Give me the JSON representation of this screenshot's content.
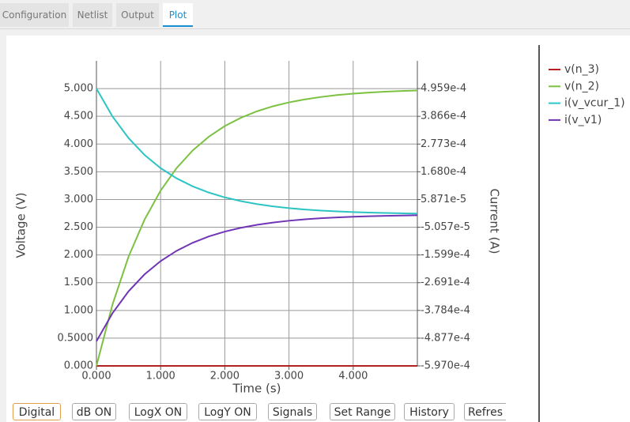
{
  "tabs": [
    "Configuration",
    "Netlist",
    "Output",
    "Plot"
  ],
  "buttons": [
    "Digital",
    "dB ON",
    "LogX ON",
    "LogY ON",
    "Signals",
    "Set Range",
    "History",
    "Refres"
  ],
  "chart_data": {
    "type": "line",
    "x_label": "Time (s)",
    "y_label": "Voltage (V)",
    "y2_label": "Current (A)",
    "x": [
      0,
      0.25,
      0.5,
      0.75,
      1,
      1.25,
      1.5,
      1.75,
      2,
      2.25,
      2.5,
      2.75,
      3,
      3.25,
      3.5,
      3.75,
      4,
      4.25,
      4.5,
      4.75,
      5
    ],
    "series": [
      {
        "name": "v(n_3)",
        "color": "#b22222",
        "values": [
          0,
          0,
          0,
          0,
          0,
          0,
          0,
          0,
          0,
          0,
          0,
          0,
          0,
          0,
          0,
          0,
          0,
          0,
          0,
          0,
          0
        ]
      },
      {
        "name": "v(n_2)",
        "color": "#7cc142",
        "values": [
          0,
          1.106,
          1.968,
          2.638,
          3.161,
          3.568,
          3.885,
          4.131,
          4.324,
          4.473,
          4.59,
          4.681,
          4.751,
          4.806,
          4.849,
          4.883,
          4.909,
          4.929,
          4.945,
          4.957,
          4.966
        ]
      },
      {
        "name": "i(v_vcur_1)",
        "color": "#2ec4c4",
        "axis": "y2",
        "values": [
          0.0004959,
          0.0003862,
          0.0003008,
          0.0002343,
          0.0001824,
          0.0001421,
          0.0001106,
          8.62e-05,
          6.71e-05,
          5.23e-05,
          4.07e-05,
          3.17e-05,
          2.47e-05,
          1.92e-05,
          1.5e-05,
          1.17e-05,
          9.1e-06,
          7.1e-06,
          5.5e-06,
          4.3e-06,
          3.3e-06
        ]
      },
      {
        "name": "i(v_v1)",
        "color": "#7035b5",
        "axis": "y2",
        "values": [
          -0.0005,
          -0.0003894,
          -0.0003033,
          -0.0002362,
          -0.000184,
          -0.0001433,
          -0.0001116,
          -8.69e-05,
          -6.77e-05,
          -5.27e-05,
          -4.11e-05,
          -3.2e-05,
          -2.49e-05,
          -1.94e-05,
          -1.51e-05,
          -1.18e-05,
          -9.2e-06,
          -7.2e-06,
          -5.6e-06,
          -4.4e-06,
          -3.4e-06
        ]
      }
    ],
    "xlim": [
      0,
      5
    ],
    "xticks": [
      {
        "value": 0,
        "label": "0.000"
      },
      {
        "value": 1,
        "label": "1.000"
      },
      {
        "value": 2,
        "label": "2.000"
      },
      {
        "value": 3,
        "label": "3.000"
      },
      {
        "value": 4,
        "label": "4.000"
      }
    ],
    "ylim": [
      0,
      5.5
    ],
    "yticks": [
      {
        "value": 0,
        "label": "0.000"
      },
      {
        "value": 0.5,
        "label": "0.5000"
      },
      {
        "value": 1,
        "label": "1.000"
      },
      {
        "value": 1.5,
        "label": "1.500"
      },
      {
        "value": 2,
        "label": "2.000"
      },
      {
        "value": 2.5,
        "label": "2.500"
      },
      {
        "value": 3,
        "label": "3.000"
      },
      {
        "value": 3.5,
        "label": "3.500"
      },
      {
        "value": 4,
        "label": "4.000"
      },
      {
        "value": 4.5,
        "label": "4.500"
      },
      {
        "value": 5,
        "label": "5.000"
      }
    ],
    "y2lim": [
      -0.000597,
      0.0006052
    ],
    "y2ticks": [
      {
        "value": 0.0004959,
        "label": "4.959e-4"
      },
      {
        "value": 0.0003866,
        "label": "3.866e-4"
      },
      {
        "value": 0.0002773,
        "label": "2.773e-4"
      },
      {
        "value": 0.000168,
        "label": "1.680e-4"
      },
      {
        "value": 5.871e-05,
        "label": "5.871e-5"
      },
      {
        "value": -5.057e-05,
        "label": "-5.057e-5"
      },
      {
        "value": -0.0001599,
        "label": "-1.599e-4"
      },
      {
        "value": -0.0002691,
        "label": "-2.691e-4"
      },
      {
        "value": -0.0003784,
        "label": "-3.784e-4"
      },
      {
        "value": -0.0004877,
        "label": "-4.877e-4"
      },
      {
        "value": -0.000597,
        "label": "-5.970e-4"
      }
    ],
    "grid": true
  }
}
